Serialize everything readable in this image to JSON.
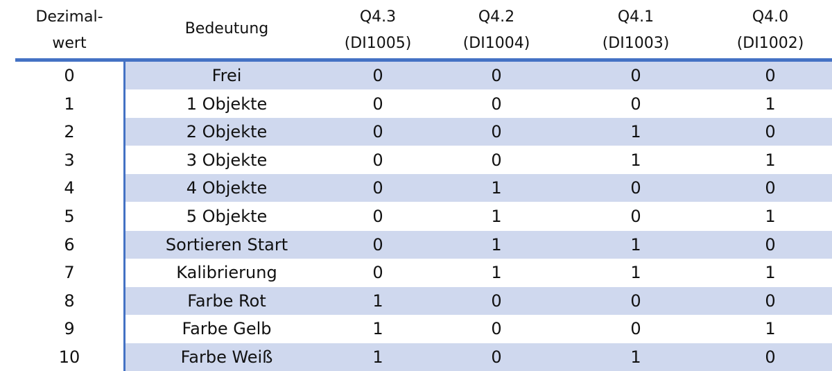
{
  "table": {
    "header": [
      [
        "Dezimal-",
        "wert"
      ],
      [
        "Bedeutung"
      ],
      [
        "Q4.3",
        "(DI1005)"
      ],
      [
        "Q4.2",
        "(DI1004)"
      ],
      [
        "Q4.1",
        "(DI1003)"
      ],
      [
        "Q4.0",
        "(DI1002)"
      ]
    ],
    "rows": [
      [
        0,
        "Frei",
        0,
        0,
        0,
        0
      ],
      [
        1,
        "1 Objekte",
        0,
        0,
        0,
        1
      ],
      [
        2,
        "2 Objekte",
        0,
        0,
        1,
        0
      ],
      [
        3,
        "3 Objekte",
        0,
        0,
        1,
        1
      ],
      [
        4,
        "4 Objekte",
        0,
        1,
        0,
        0
      ],
      [
        5,
        "5 Objekte",
        0,
        1,
        0,
        1
      ],
      [
        6,
        "Sortieren Start",
        0,
        1,
        1,
        0
      ],
      [
        7,
        "Kalibrierung",
        0,
        1,
        1,
        1
      ],
      [
        8,
        "Farbe Rot",
        1,
        0,
        0,
        0
      ],
      [
        9,
        "Farbe Gelb",
        1,
        0,
        0,
        1
      ],
      [
        10,
        "Farbe Weiß",
        1,
        0,
        1,
        0
      ]
    ]
  }
}
